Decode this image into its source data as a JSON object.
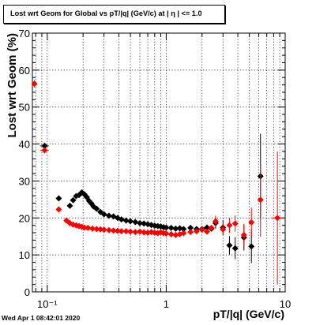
{
  "footer": {
    "timestamp": "Wed Apr  1 08:42:01 2020"
  },
  "colors": {
    "series_black": "#000000",
    "series_red": "#ff0000",
    "axis": "#000000",
    "grid": "#000000"
  },
  "chart_data": {
    "type": "scatter",
    "title": "Lost wrt Geom for Global vs pT/|q| (GeV/c) at |  η | <= 1.0",
    "xlabel": "pT/|q| (GeV/c)",
    "ylabel": "Lost wrt Geom (%)",
    "xscale": "log",
    "xlim": [
      0.075,
      10
    ],
    "ylim": [
      0,
      70
    ],
    "grid": true,
    "legend": "none",
    "x_ticks": [
      {
        "value": 0.1,
        "label": "10⁻¹"
      },
      {
        "value": 1,
        "label": "1"
      },
      {
        "value": 10,
        "label": "10"
      }
    ],
    "y_ticks": [
      0,
      10,
      20,
      30,
      40,
      50,
      60,
      70
    ],
    "series": [
      {
        "color": "#000000",
        "points": [
          {
            "x": 0.095,
            "y": 39.5,
            "xerr": 0.008,
            "yerr": 0.8
          },
          {
            "x": 0.125,
            "y": 25.3,
            "xerr": 0.004,
            "yerr": 0.6
          },
          {
            "x": 0.155,
            "y": 23.3
          },
          {
            "x": 0.165,
            "y": 24.8
          },
          {
            "x": 0.175,
            "y": 25.9
          },
          {
            "x": 0.185,
            "y": 26.2
          },
          {
            "x": 0.195,
            "y": 26.9
          },
          {
            "x": 0.205,
            "y": 26.4
          },
          {
            "x": 0.215,
            "y": 25.6
          },
          {
            "x": 0.225,
            "y": 24.6
          },
          {
            "x": 0.235,
            "y": 23.9
          },
          {
            "x": 0.245,
            "y": 23.1
          },
          {
            "x": 0.26,
            "y": 22.5
          },
          {
            "x": 0.28,
            "y": 21.6
          },
          {
            "x": 0.3,
            "y": 21.0
          },
          {
            "x": 0.33,
            "y": 20.6
          },
          {
            "x": 0.36,
            "y": 20.4
          },
          {
            "x": 0.39,
            "y": 20.0
          },
          {
            "x": 0.42,
            "y": 19.6
          },
          {
            "x": 0.46,
            "y": 19.3
          },
          {
            "x": 0.5,
            "y": 19.1
          },
          {
            "x": 0.55,
            "y": 18.9
          },
          {
            "x": 0.6,
            "y": 18.6
          },
          {
            "x": 0.65,
            "y": 18.5
          },
          {
            "x": 0.7,
            "y": 18.3
          },
          {
            "x": 0.75,
            "y": 18.1
          },
          {
            "x": 0.8,
            "y": 17.9
          },
          {
            "x": 0.85,
            "y": 17.8
          },
          {
            "x": 0.9,
            "y": 17.7
          },
          {
            "x": 0.95,
            "y": 17.5
          },
          {
            "x": 1.0,
            "y": 17.4
          },
          {
            "x": 1.1,
            "y": 17.3
          },
          {
            "x": 1.2,
            "y": 17.1
          },
          {
            "x": 1.3,
            "y": 17.2
          },
          {
            "x": 1.4,
            "y": 17.0
          },
          {
            "x": 1.6,
            "y": 17.3
          },
          {
            "x": 1.8,
            "y": 17.0
          },
          {
            "x": 2.0,
            "y": 17.0
          },
          {
            "x": 2.2,
            "y": 17.4
          },
          {
            "x": 2.4,
            "y": 17.1
          },
          {
            "x": 2.6,
            "y": 18.6,
            "yerr": 1.5
          },
          {
            "x": 3.0,
            "y": 17.4,
            "yerr": 2.0
          },
          {
            "x": 3.4,
            "y": 12.6,
            "yerr": 2.5
          },
          {
            "x": 3.8,
            "y": 11.8,
            "yerr": 3.0
          },
          {
            "x": 4.5,
            "y": 14.7,
            "yerr": 3.5
          },
          {
            "x": 5.2,
            "y": 12.3,
            "yerr": 4.5
          },
          {
            "x": 6.2,
            "y": 31.3,
            "yerr": 11.5
          }
        ]
      },
      {
        "color": "#ff0000",
        "points": [
          {
            "x": 0.078,
            "y": 56.3,
            "xerr": 0.003,
            "yerr": 1.0
          },
          {
            "x": 0.095,
            "y": 38.3,
            "xerr": 0.008,
            "yerr": 0.8
          },
          {
            "x": 0.125,
            "y": 22.3,
            "xerr": 0.004,
            "yerr": 0.6
          },
          {
            "x": 0.145,
            "y": 19.3
          },
          {
            "x": 0.155,
            "y": 18.6
          },
          {
            "x": 0.165,
            "y": 18.2
          },
          {
            "x": 0.175,
            "y": 18.0
          },
          {
            "x": 0.185,
            "y": 17.8
          },
          {
            "x": 0.195,
            "y": 17.6
          },
          {
            "x": 0.205,
            "y": 17.4
          },
          {
            "x": 0.22,
            "y": 17.3
          },
          {
            "x": 0.24,
            "y": 17.1
          },
          {
            "x": 0.26,
            "y": 17.0
          },
          {
            "x": 0.28,
            "y": 16.9
          },
          {
            "x": 0.3,
            "y": 16.8
          },
          {
            "x": 0.33,
            "y": 16.7
          },
          {
            "x": 0.36,
            "y": 16.6
          },
          {
            "x": 0.39,
            "y": 16.5
          },
          {
            "x": 0.42,
            "y": 16.4
          },
          {
            "x": 0.46,
            "y": 16.4
          },
          {
            "x": 0.5,
            "y": 16.3
          },
          {
            "x": 0.55,
            "y": 16.2
          },
          {
            "x": 0.6,
            "y": 16.3
          },
          {
            "x": 0.65,
            "y": 16.1
          },
          {
            "x": 0.7,
            "y": 16.0
          },
          {
            "x": 0.75,
            "y": 16.2
          },
          {
            "x": 0.8,
            "y": 16.0
          },
          {
            "x": 0.85,
            "y": 15.9
          },
          {
            "x": 0.9,
            "y": 16.1
          },
          {
            "x": 0.95,
            "y": 15.9
          },
          {
            "x": 1.0,
            "y": 15.8
          },
          {
            "x": 1.1,
            "y": 15.6
          },
          {
            "x": 1.2,
            "y": 15.4
          },
          {
            "x": 1.3,
            "y": 15.6
          },
          {
            "x": 1.4,
            "y": 15.9
          },
          {
            "x": 1.6,
            "y": 16.2
          },
          {
            "x": 1.8,
            "y": 16.4
          },
          {
            "x": 2.0,
            "y": 16.8
          },
          {
            "x": 2.2,
            "y": 16.3
          },
          {
            "x": 2.4,
            "y": 17.3
          },
          {
            "x": 2.6,
            "y": 19.1,
            "yerr": 1.5
          },
          {
            "x": 3.0,
            "y": 16.9,
            "yerr": 1.5
          },
          {
            "x": 3.4,
            "y": 18.0,
            "yerr": 2.0
          },
          {
            "x": 3.8,
            "y": 18.5,
            "yerr": 2.2
          },
          {
            "x": 4.5,
            "y": 15.4,
            "yerr": 3.0
          },
          {
            "x": 5.2,
            "y": 18.8,
            "yerr": 4.0
          },
          {
            "x": 6.2,
            "y": 24.9,
            "yerr": 10.0
          },
          {
            "x": 8.6,
            "y": 20.0,
            "xerr": 0.9,
            "yerr": 18.0
          }
        ]
      }
    ]
  }
}
